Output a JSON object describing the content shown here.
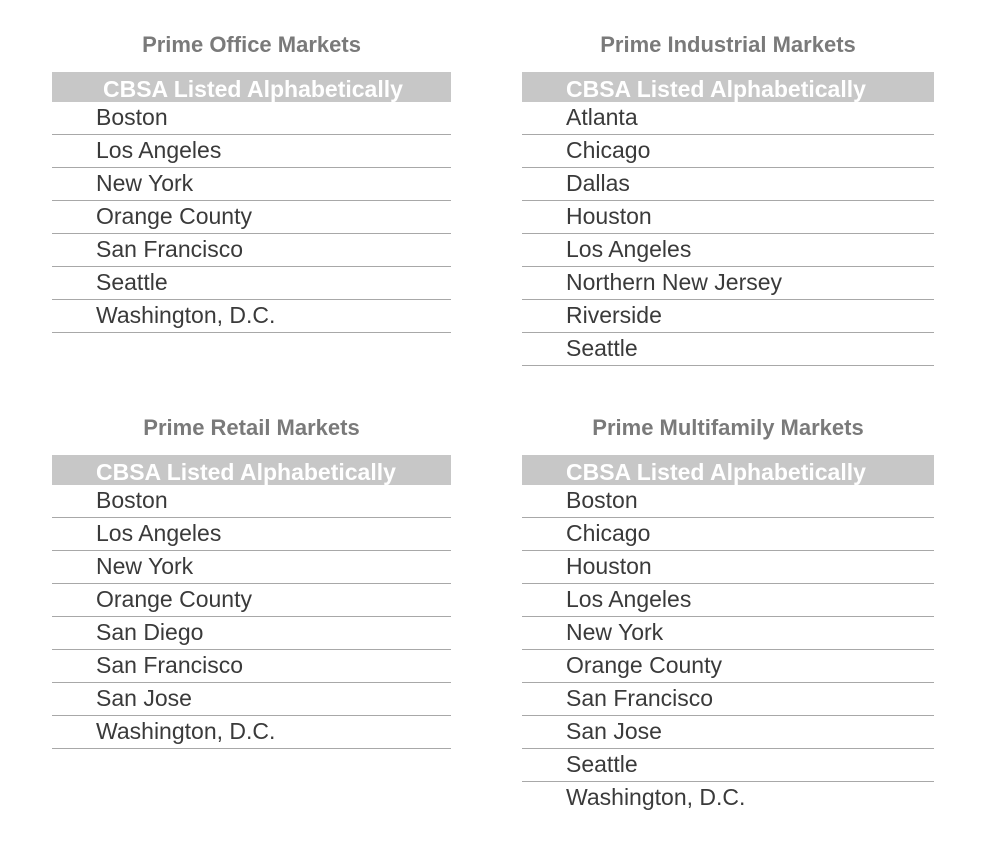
{
  "office": {
    "title": "Prime Office Markets",
    "header": "CBSA Listed Alphabetically",
    "items": [
      "Boston",
      "Los Angeles",
      "New York",
      "Orange County",
      "San Francisco",
      "Seattle",
      "Washington, D.C."
    ]
  },
  "industrial": {
    "title": "Prime Industrial Markets",
    "header": "CBSA Listed Alphabetically",
    "items": [
      "Atlanta",
      "Chicago",
      "Dallas",
      "Houston",
      "Los Angeles",
      "Northern New Jersey",
      "Riverside",
      "Seattle"
    ]
  },
  "retail": {
    "title": "Prime Retail Markets",
    "header": "CBSA Listed Alphabetically",
    "items": [
      "Boston",
      "Los Angeles",
      "New York",
      "Orange County",
      "San Diego",
      "San Francisco",
      "San Jose",
      "Washington, D.C."
    ]
  },
  "multifamily": {
    "title": "Prime Multifamily Markets",
    "header": "CBSA Listed Alphabetically",
    "items": [
      "Boston",
      "Chicago",
      "Houston",
      "Los Angeles",
      "New York",
      "Orange County",
      "San Francisco",
      "San Jose",
      "Seattle",
      "Washington, D.C."
    ]
  }
}
